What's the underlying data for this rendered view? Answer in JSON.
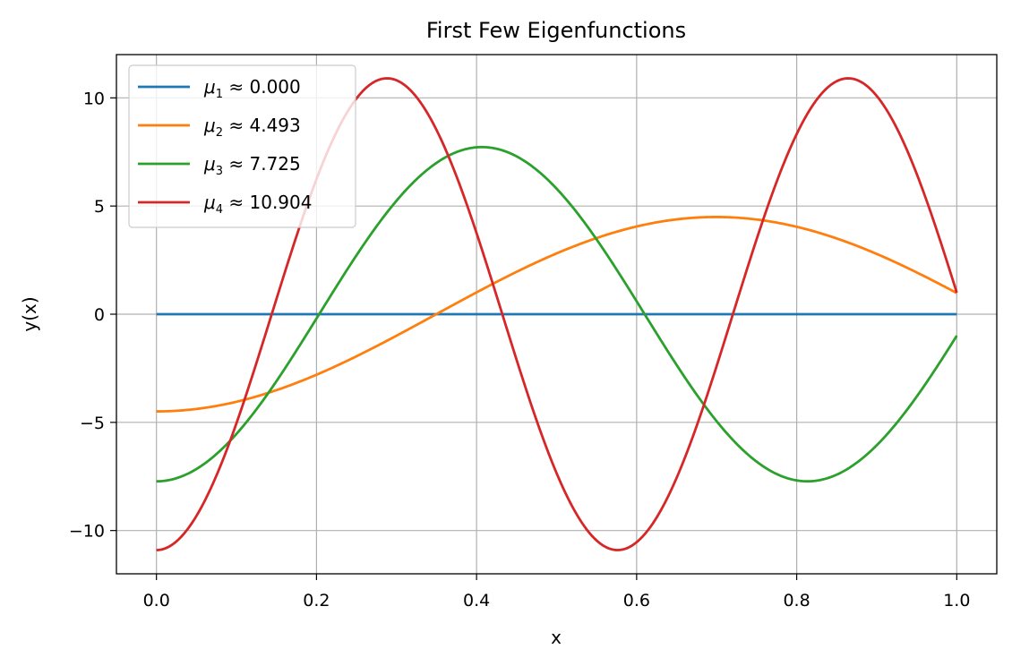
{
  "chart_data": {
    "type": "line",
    "title": "First Few Eigenfunctions",
    "xlabel": "x",
    "ylabel": "y(x)",
    "xlim": [
      -0.05,
      1.05
    ],
    "ylim": [
      -12,
      12
    ],
    "xticks": [
      0.0,
      0.2,
      0.4,
      0.6,
      0.8,
      1.0
    ],
    "xtick_labels": [
      "0.0",
      "0.2",
      "0.4",
      "0.6",
      "0.8",
      "1.0"
    ],
    "yticks": [
      -10,
      -5,
      0,
      5,
      10
    ],
    "ytick_labels": [
      "−10",
      "−5",
      "0",
      "5",
      "10"
    ],
    "grid": true,
    "legend_position": "upper-left",
    "series": [
      {
        "name": "μ1 ≈ 0.000",
        "symbol": "μ",
        "subscript": "1",
        "value": "0.000",
        "mu": 0.0,
        "color": "#1f77b4"
      },
      {
        "name": "μ2 ≈ 4.493",
        "symbol": "μ",
        "subscript": "2",
        "value": "4.493",
        "mu": 4.493,
        "color": "#ff7f0e"
      },
      {
        "name": "μ3 ≈ 7.725",
        "symbol": "μ",
        "subscript": "3",
        "value": "7.725",
        "mu": 7.725,
        "color": "#2ca02c"
      },
      {
        "name": "μ4 ≈ 10.904",
        "symbol": "μ",
        "subscript": "4",
        "value": "10.904",
        "mu": 10.904,
        "color": "#d62728"
      }
    ],
    "function": "y = -mu * cos(mu * x), x in [0, 1]"
  }
}
